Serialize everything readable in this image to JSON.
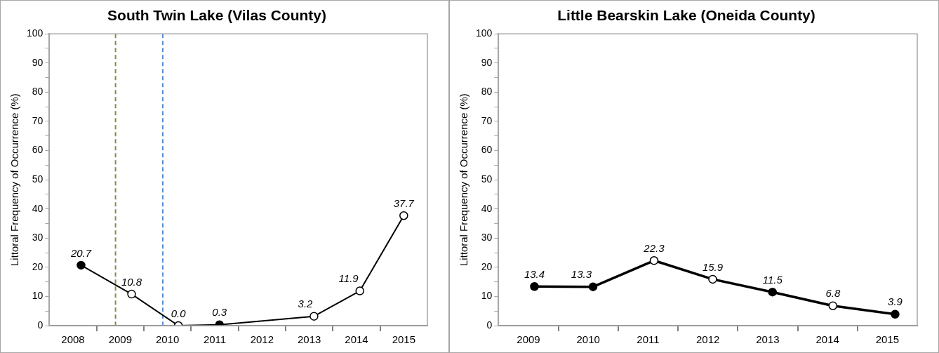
{
  "chart_data": [
    {
      "type": "line",
      "title": "South Twin Lake (Vilas County)",
      "ylabel": "Littoral Frequency of Occurrence (%)",
      "series": [
        {
          "color": "#000000",
          "x": [
            2008.67,
            2009.74,
            2010.73,
            2011.6,
            2013.6,
            2014.57,
            2015.5
          ],
          "values": [
            20.7,
            10.8,
            0.0,
            0.3,
            3.2,
            11.9,
            37.7
          ],
          "value_labels": [
            "20.7",
            "10.8",
            "0.0",
            "0.3",
            "3.2",
            "11.9",
            "37.7"
          ],
          "colors": [
            "#000000",
            "#ffffff",
            "#ffffff",
            "#000000",
            "#ffffff",
            "#ffffff",
            "#ffffff"
          ]
        }
      ],
      "xlim": [
        2008,
        2016
      ],
      "xticks": [
        {
          "value": 2008.5,
          "label": "2008"
        },
        {
          "value": 2009,
          "label": null
        },
        {
          "value": 2009.5,
          "label": "2009"
        },
        {
          "value": 2010,
          "label": null
        },
        {
          "value": 2010.5,
          "label": "2010"
        },
        {
          "value": 2011,
          "label": null
        },
        {
          "value": 2011.5,
          "label": "2011"
        },
        {
          "value": 2012,
          "label": null
        },
        {
          "value": 2012.5,
          "label": "2012"
        },
        {
          "value": 2013,
          "label": null
        },
        {
          "value": 2013.5,
          "label": "2013"
        },
        {
          "value": 2014,
          "label": null
        },
        {
          "value": 2014.5,
          "label": "2014"
        },
        {
          "value": 2015,
          "label": null
        },
        {
          "value": 2015.5,
          "label": "2015"
        }
      ],
      "ylim": [
        0,
        100
      ],
      "yticks": [
        0,
        {
          "value": 5,
          "label": null
        },
        10,
        {
          "value": 15,
          "label": null
        },
        20,
        {
          "value": 25,
          "label": null
        },
        30,
        {
          "value": 35,
          "label": null
        },
        40,
        {
          "value": 45,
          "label": null
        },
        50,
        {
          "value": 55,
          "label": null
        },
        60,
        {
          "value": 65,
          "label": null
        },
        70,
        {
          "value": 75,
          "label": null
        },
        80,
        {
          "value": 85,
          "label": null
        },
        90,
        {
          "value": 95,
          "label": null
        },
        100
      ],
      "ref_lines": [
        {
          "axis": "x",
          "value": 2009.4,
          "color": "#77933c",
          "line_style": "dashed"
        },
        {
          "axis": "x",
          "value": 2010.4,
          "color": "#558ed5",
          "line_style": "dashed"
        }
      ],
      "marker": "circle",
      "line_style": "solid",
      "grid": false,
      "legend": false
    },
    {
      "type": "line",
      "title": "Little Bearskin Lake (Oneida County)",
      "ylabel": "Littoral Frequency of Occurrence (%)",
      "series": [
        {
          "color": "#000000",
          "x": [
            2009.6,
            2010.58,
            2011.6,
            2012.58,
            2013.58,
            2014.59,
            2015.63
          ],
          "values": [
            13.4,
            13.3,
            22.3,
            15.9,
            11.5,
            6.8,
            3.9
          ],
          "value_labels": [
            "13.4",
            "13.3",
            "22.3",
            "15.9",
            "11.5",
            "6.8",
            "3.9"
          ],
          "colors": [
            "#000000",
            "#000000",
            "#ffffff",
            "#ffffff",
            "#000000",
            "#ffffff",
            "#000000"
          ]
        }
      ],
      "xlim": [
        2009,
        2016
      ],
      "xticks": [
        {
          "value": 2009.5,
          "label": "2009"
        },
        {
          "value": 2010,
          "label": null
        },
        {
          "value": 2010.5,
          "label": "2010"
        },
        {
          "value": 2011,
          "label": null
        },
        {
          "value": 2011.5,
          "label": "2011"
        },
        {
          "value": 2012,
          "label": null
        },
        {
          "value": 2012.5,
          "label": "2012"
        },
        {
          "value": 2013,
          "label": null
        },
        {
          "value": 2013.5,
          "label": "2013"
        },
        {
          "value": 2014,
          "label": null
        },
        {
          "value": 2014.5,
          "label": "2014"
        },
        {
          "value": 2015,
          "label": null
        },
        {
          "value": 2015.5,
          "label": "2015"
        }
      ],
      "ylim": [
        0,
        100
      ],
      "yticks": [
        0,
        {
          "value": 5,
          "label": null
        },
        10,
        {
          "value": 15,
          "label": null
        },
        20,
        {
          "value": 25,
          "label": null
        },
        30,
        {
          "value": 35,
          "label": null
        },
        40,
        {
          "value": 45,
          "label": null
        },
        50,
        {
          "value": 55,
          "label": null
        },
        60,
        {
          "value": 65,
          "label": null
        },
        70,
        {
          "value": 75,
          "label": null
        },
        80,
        {
          "value": 85,
          "label": null
        },
        90,
        {
          "value": 95,
          "label": null
        },
        100
      ],
      "marker": "circle",
      "line_style": "solid",
      "grid": false,
      "legend": false
    }
  ]
}
